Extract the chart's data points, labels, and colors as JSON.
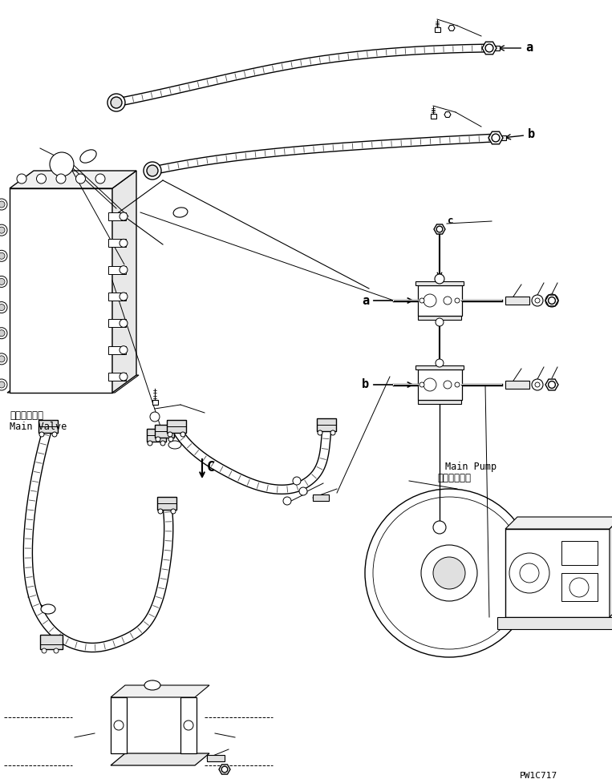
{
  "background_color": "#ffffff",
  "line_color": "#000000",
  "label_a_top": "a",
  "label_b_top": "b",
  "label_a_mid": "a",
  "label_b_mid": "b",
  "label_c_mid": "c",
  "label_c_bot": "C",
  "main_valve_jp": "メインバルブ",
  "main_valve_en": "Main Valve",
  "main_pump_jp": "メインポンプ",
  "main_pump_en": "Main Pump",
  "watermark": "PW1C717",
  "fig_width": 7.63,
  "fig_height": 9.72,
  "dpi": 100
}
